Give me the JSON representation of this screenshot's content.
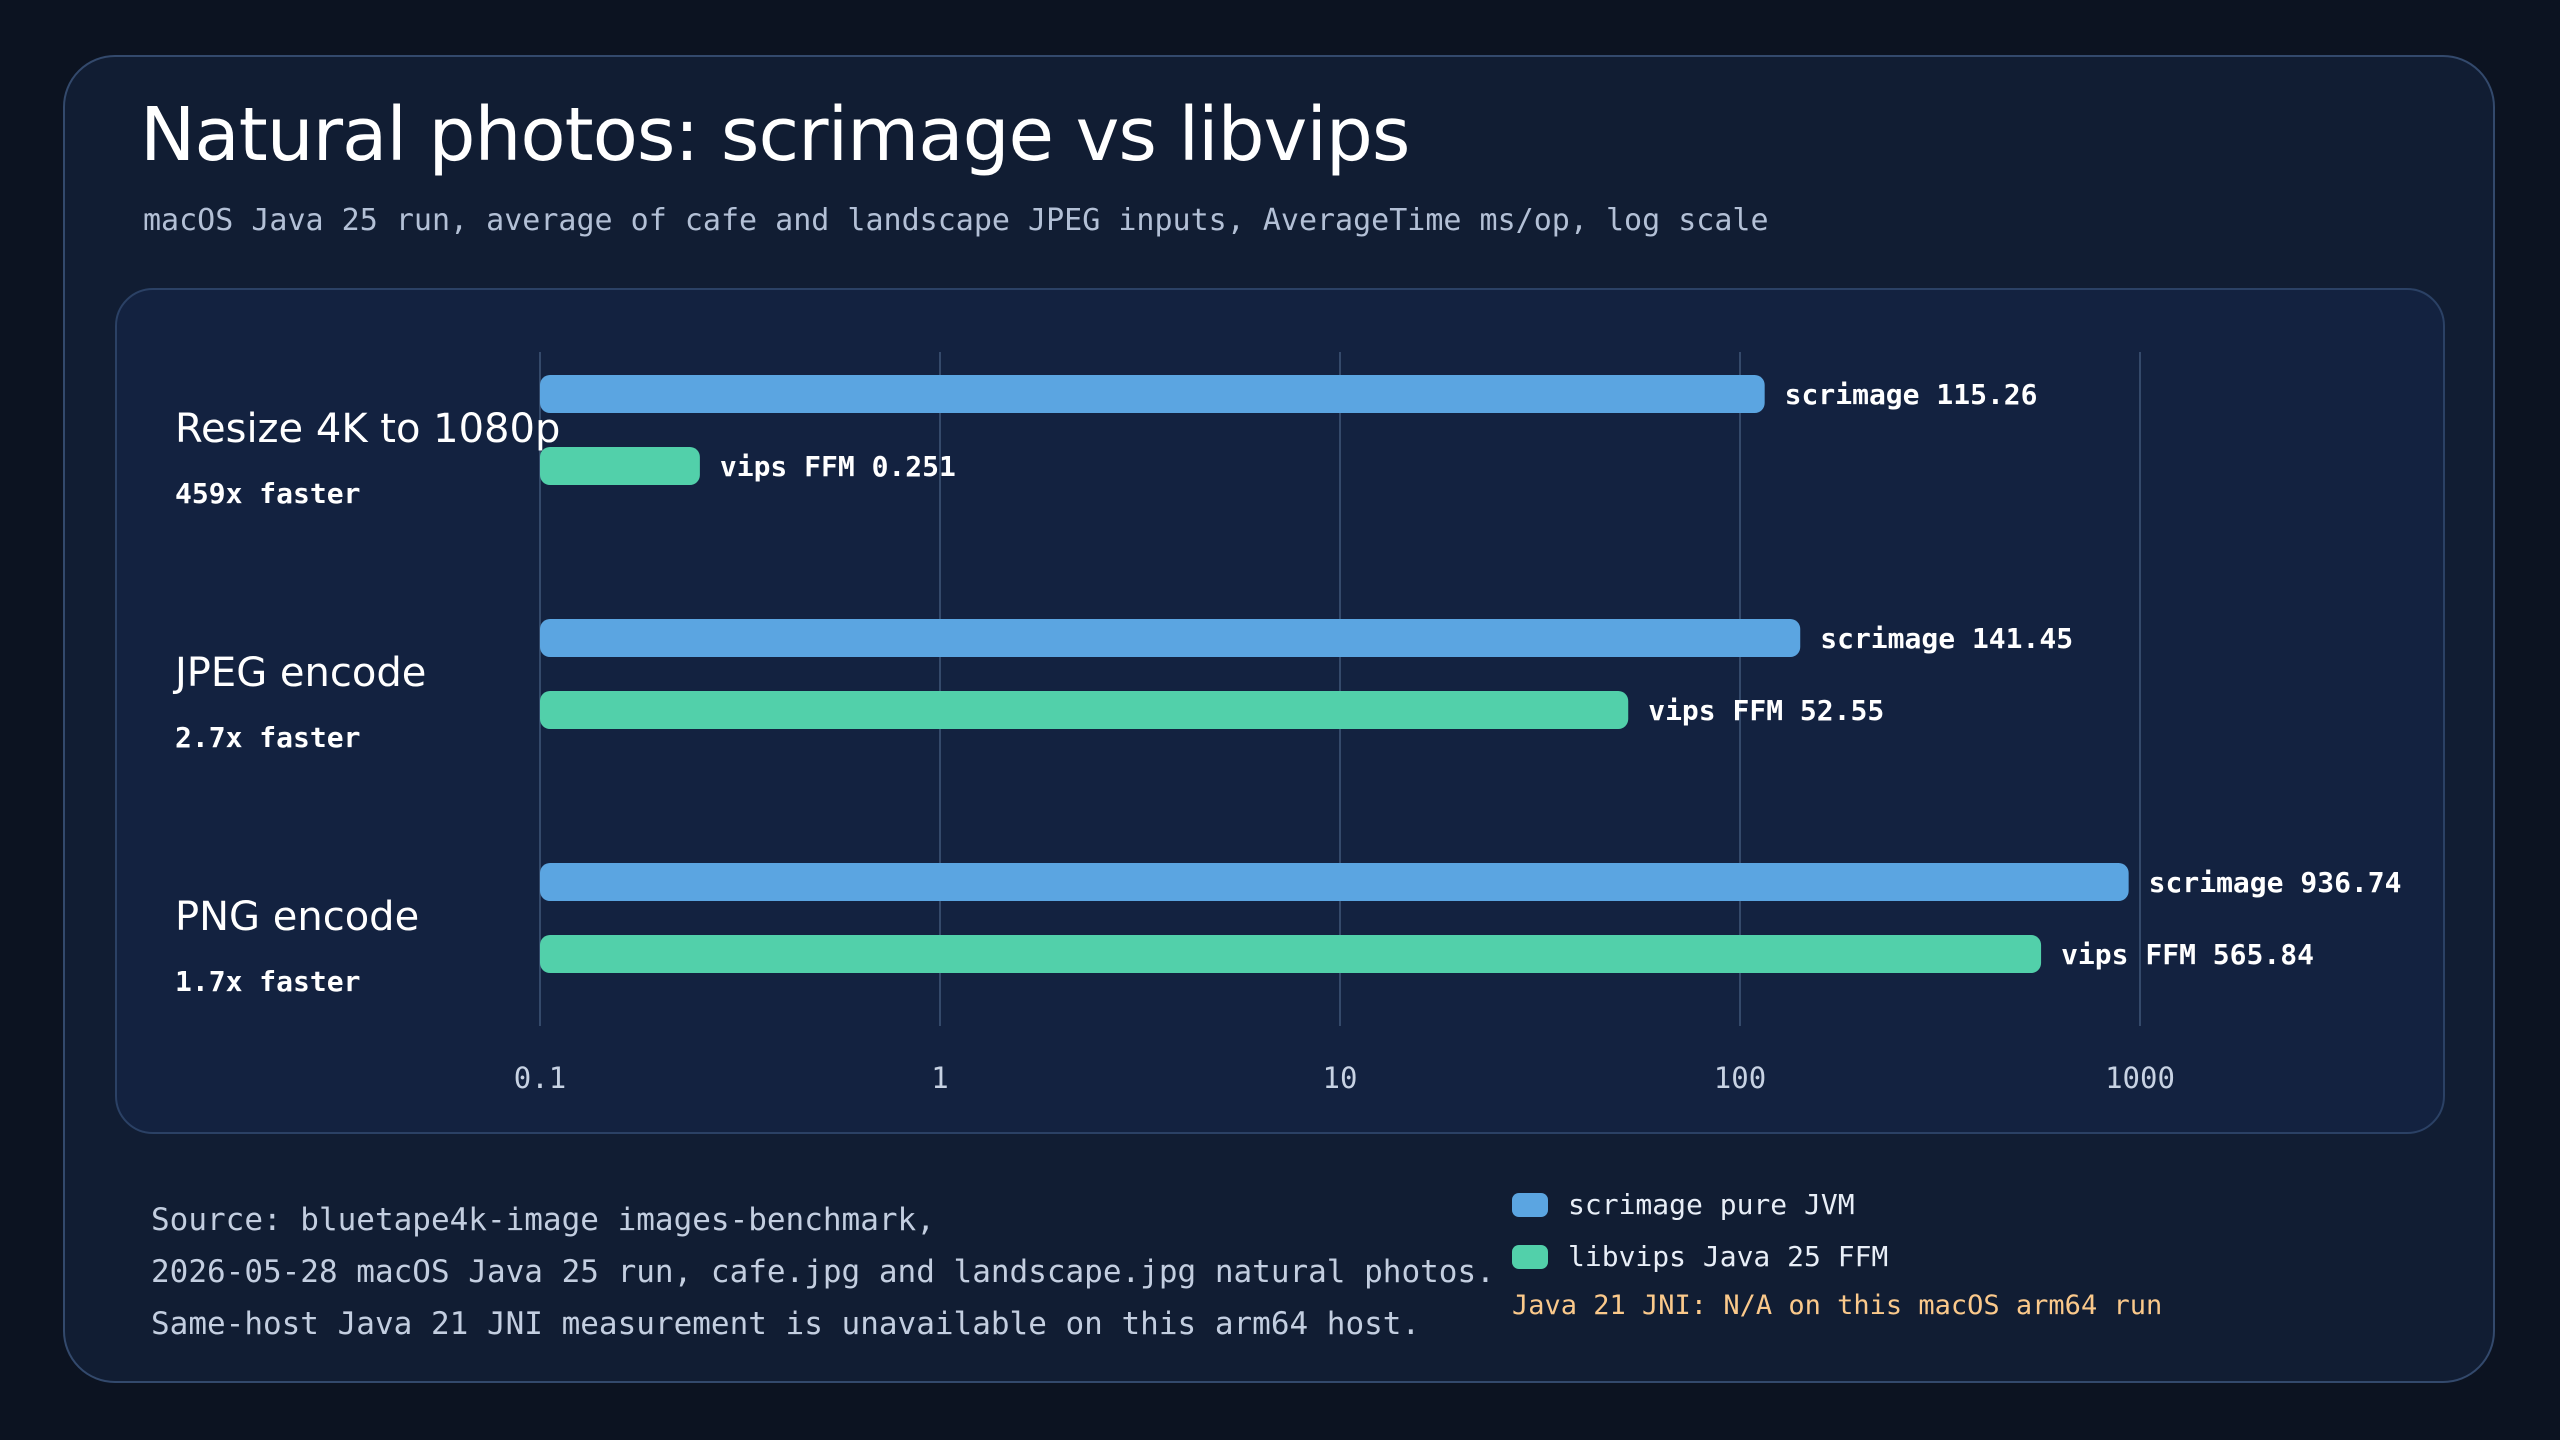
{
  "header": {
    "title": "Natural photos: scrimage vs libvips",
    "subtitle": "macOS Java 25 run, average of cafe and landscape JPEG inputs, AverageTime ms/op, log scale"
  },
  "chart_data": {
    "type": "bar",
    "orientation": "horizontal",
    "scale": "log",
    "xlim": [
      0.1,
      1000
    ],
    "ticks": [
      "0.1",
      "1",
      "10",
      "100",
      "1000"
    ],
    "grid": true,
    "categories": [
      "Resize 4K to 1080p",
      "JPEG encode",
      "PNG encode"
    ],
    "speedups": [
      "459x faster",
      "2.7x faster",
      "1.7x faster"
    ],
    "series": [
      {
        "name": "scrimage pure JVM",
        "bar_prefix": "scrimage",
        "color": "#5ba5e1",
        "values": [
          115.26,
          141.45,
          936.74
        ]
      },
      {
        "name": "libvips Java 25 FFM",
        "bar_prefix": "vips FFM",
        "color": "#52d0aa",
        "values": [
          0.251,
          52.55,
          565.84
        ]
      }
    ]
  },
  "footer": {
    "lines": [
      "Source: bluetape4k-image images-benchmark,",
      "2026-05-28 macOS Java 25 run, cafe.jpg and landscape.jpg natural photos.",
      "Same-host Java 21 JNI measurement is unavailable on this arm64 host."
    ],
    "note": "Java 21 JNI: N/A on this macOS arm64 run",
    "note_color": "#fbc98b"
  }
}
